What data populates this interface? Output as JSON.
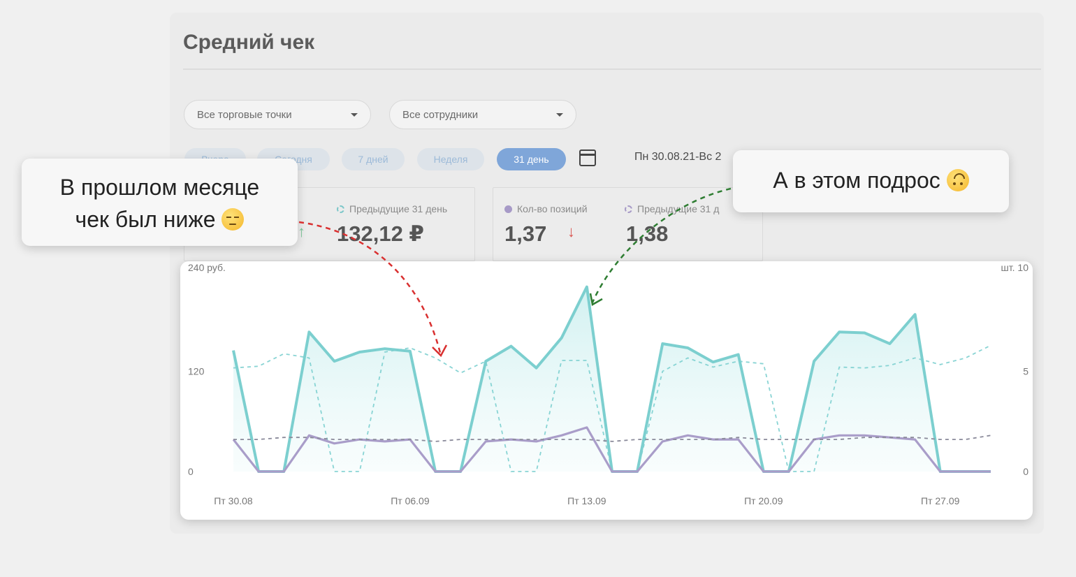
{
  "page_title": "Средний чек",
  "filters": {
    "outlets": "Все торговые точки",
    "employees": "Все сотрудники"
  },
  "period_tabs": [
    {
      "label": "Вчера",
      "active": false
    },
    {
      "label": "Сегодня",
      "active": false
    },
    {
      "label": "7 дней",
      "active": false
    },
    {
      "label": "Неделя",
      "active": false
    },
    {
      "label": "31 день",
      "active": true
    }
  ],
  "date_range": "Пн 30.08.21-Вс 2",
  "stats": {
    "check_prev_label": "Предыдущие 31 день",
    "check_prev_value": "132,12 ₽",
    "positions_label": "Кол-во позиций",
    "positions_value": "1,37",
    "positions_prev_label": "Предыдущие 31 д",
    "positions_prev_value": "1,38"
  },
  "callouts": {
    "left_line1": "В прошлом месяце",
    "left_line2": "чек был ниже",
    "right": "А в этом подрос"
  },
  "colors": {
    "teal": "#7ccfcf",
    "purple": "#a99dc9",
    "down_arrow": "#d9534f",
    "up_arrow": "#7cc79a",
    "callout_arrow_red": "#d93030",
    "callout_arrow_green": "#2e7d32"
  },
  "chart_data": {
    "type": "line",
    "x": [
      "30.08",
      "31.08",
      "01.09",
      "02.09",
      "03.09",
      "04.09",
      "05.09",
      "06.09",
      "07.09",
      "08.09",
      "09.09",
      "10.09",
      "11.09",
      "12.09",
      "13.09",
      "14.09",
      "15.09",
      "16.09",
      "17.09",
      "18.09",
      "19.09",
      "20.09",
      "21.09",
      "22.09",
      "23.09",
      "24.09",
      "25.09",
      "26.09",
      "27.09",
      "28.09",
      "29.09"
    ],
    "x_tick_labels": [
      "Пт 30.08",
      "Пт 06.09",
      "Пт 13.09",
      "Пт 20.09",
      "Пт 27.09"
    ],
    "x_tick_index": [
      0,
      7,
      14,
      21,
      28
    ],
    "y_left": {
      "unit": "руб.",
      "ticks": [
        0,
        120,
        240
      ],
      "ylim": [
        0,
        240
      ]
    },
    "y_right": {
      "unit": "шт.",
      "ticks": [
        0,
        5,
        10
      ],
      "ylim": [
        0,
        10
      ]
    },
    "series": [
      {
        "axis": "left",
        "style": "solid-area",
        "values": [
          145,
          0,
          0,
          167,
          132,
          143,
          147,
          144,
          0,
          0,
          132,
          150,
          124,
          160,
          221,
          0,
          0,
          153,
          148,
          131,
          140,
          0,
          0,
          132,
          167,
          166,
          153,
          188,
          0,
          0,
          0
        ]
      },
      {
        "axis": "left",
        "style": "dashed",
        "values": [
          124,
          126,
          141,
          136,
          0,
          0,
          143,
          148,
          136,
          118,
          132,
          0,
          0,
          133,
          133,
          0,
          0,
          120,
          136,
          125,
          132,
          129,
          0,
          0,
          125,
          124,
          127,
          136,
          128,
          136,
          151
        ]
      },
      {
        "axis": "right",
        "style": "solid",
        "values": [
          1.6,
          0,
          0,
          1.8,
          1.4,
          1.6,
          1.5,
          1.6,
          0,
          0,
          1.5,
          1.6,
          1.5,
          1.8,
          2.2,
          0,
          0,
          1.5,
          1.8,
          1.6,
          1.6,
          0,
          0,
          1.6,
          1.8,
          1.8,
          1.7,
          1.6,
          0,
          0,
          0
        ]
      },
      {
        "axis": "right",
        "style": "dashed",
        "values": [
          1.6,
          1.6,
          1.7,
          1.7,
          1.6,
          1.6,
          1.6,
          1.6,
          1.5,
          1.6,
          1.6,
          1.6,
          1.6,
          1.6,
          1.6,
          1.5,
          1.6,
          1.6,
          1.6,
          1.6,
          1.7,
          1.6,
          1.6,
          1.6,
          1.6,
          1.7,
          1.7,
          1.7,
          1.6,
          1.6,
          1.8
        ]
      }
    ]
  }
}
